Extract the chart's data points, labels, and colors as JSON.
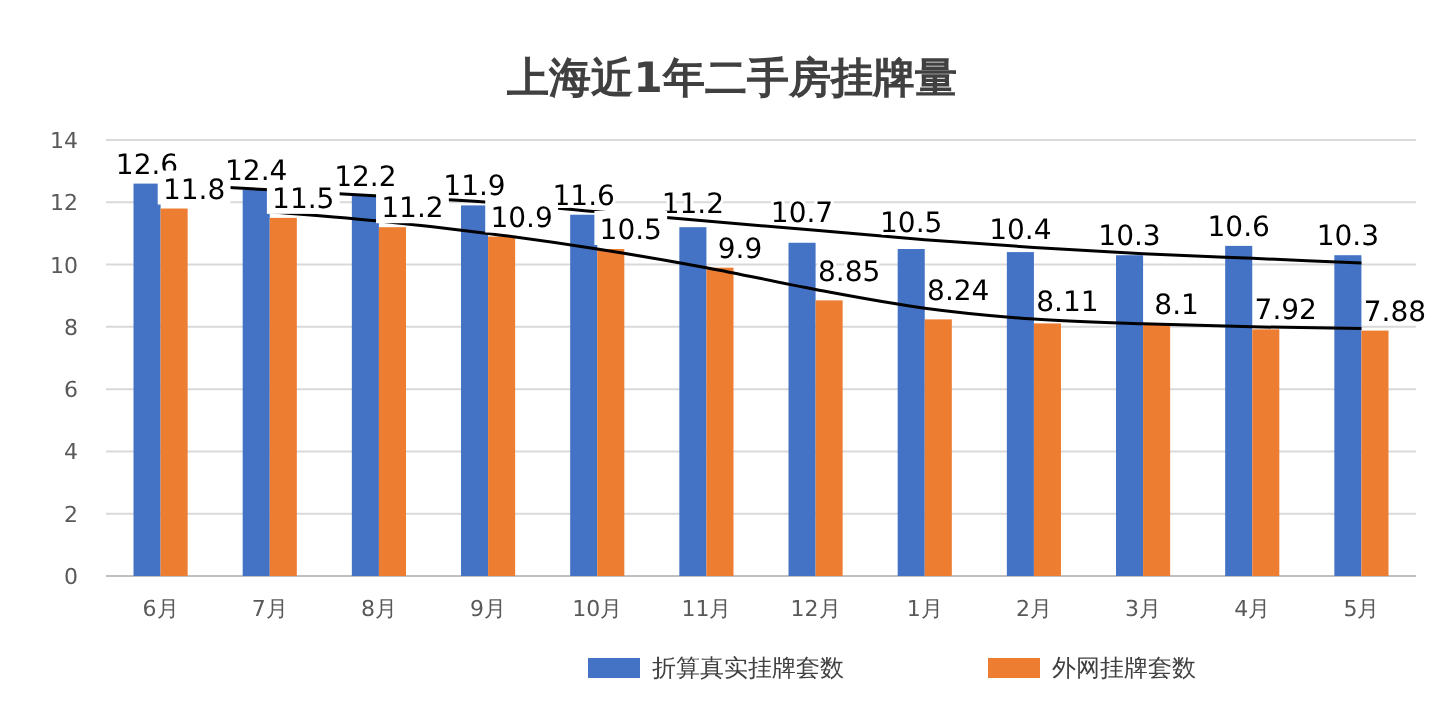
{
  "chart_data": {
    "type": "bar",
    "title": "上海近1年二手房挂牌量",
    "categories": [
      "6月",
      "7月",
      "8月",
      "9月",
      "10月",
      "11月",
      "12月",
      "1月",
      "2月",
      "3月",
      "4月",
      "5月"
    ],
    "series": [
      {
        "name": "折算真实挂牌套数",
        "color": "#4472c4",
        "values": [
          12.6,
          12.4,
          12.2,
          11.9,
          11.6,
          11.2,
          10.7,
          10.5,
          10.4,
          10.3,
          10.6,
          10.3
        ],
        "value_labels": [
          "12.6",
          "12.4",
          "12.2",
          "11.9",
          "11.6",
          "11.2",
          "10.7",
          "10.5",
          "10.4",
          "10.3",
          "10.6",
          "10.3"
        ]
      },
      {
        "name": "外网挂牌套数",
        "color": "#ed7d31",
        "values": [
          11.8,
          11.5,
          11.2,
          10.9,
          10.5,
          9.9,
          8.85,
          8.24,
          8.11,
          8.1,
          7.92,
          7.88
        ],
        "value_labels": [
          "11.8",
          "11.5",
          "11.2",
          "10.9",
          "10.5",
          "9.9",
          "8.85",
          "8.24",
          "8.11",
          "8.1",
          "7.92",
          "7.88"
        ]
      },
      {
        "type": "line",
        "color": "#000000",
        "values": [
          12.6,
          12.4,
          12.2,
          12.0,
          11.7,
          11.4,
          11.1,
          10.8,
          10.55,
          10.35,
          10.2,
          10.05
        ]
      },
      {
        "type": "line",
        "color": "#000000",
        "values": [
          null,
          11.7,
          11.4,
          11.0,
          10.5,
          9.9,
          9.2,
          8.6,
          8.25,
          8.1,
          8.0,
          7.95
        ]
      }
    ],
    "ylim": [
      0,
      14
    ],
    "yticks": [
      0,
      2,
      4,
      6,
      8,
      10,
      12,
      14
    ],
    "grid": "y",
    "legend": "bottom right"
  }
}
